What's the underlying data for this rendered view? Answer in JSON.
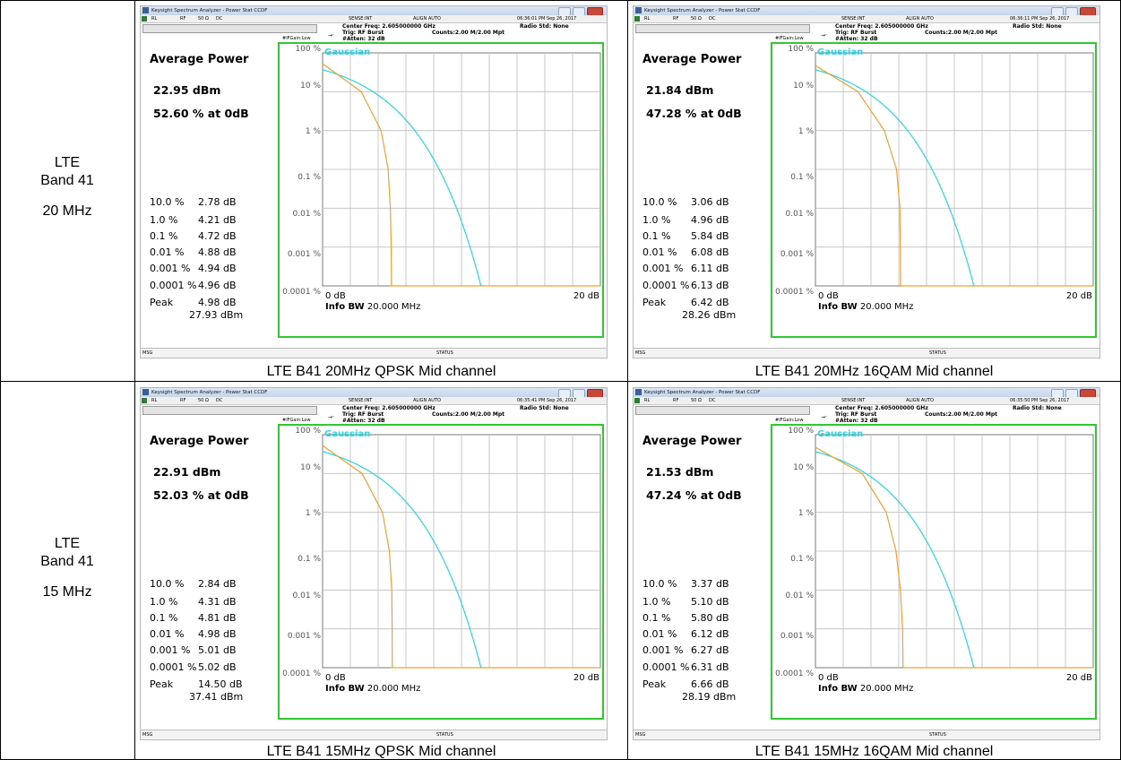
{
  "rows": [
    {
      "band_l1": "LTE",
      "band_l2": "Band 41",
      "bw": "20 MHz"
    },
    {
      "band_l1": "LTE",
      "band_l2": "Band 41",
      "bw": "15 MHz"
    }
  ],
  "common": {
    "app_title": "Keysight Spectrum Analyzer - Power Stat CCDF",
    "rl": "RL",
    "rf": "RF",
    "ohm": "50 Ω",
    "dc": "DC",
    "sense": "SENSE:INT",
    "align": "ALIGN AUTO",
    "center_freq": "Center Freq: 2.605000000 GHz",
    "trig": "Trig: RF Burst",
    "atten": "#Atten: 32 dB",
    "ifgain": "#IFGain:Low",
    "counts": "Counts:2.00 M/2.00 Mpt",
    "radio_std": "Radio Std: None",
    "average_power_label": "Average Power",
    "gaussian_label": "Gaussian",
    "y_ticks": [
      "100 %",
      "10 %",
      "1 %",
      "0.1 %",
      "0.01 %",
      "0.001 %",
      "0.0001 %"
    ],
    "x_left": "0 dB",
    "x_right": "20 dB",
    "info_bw_label": "Info BW",
    "info_bw_value": "20.000 MHz",
    "msg": "MSG",
    "status": "STATUS",
    "stat_labels": [
      "10.0 %",
      "1.0 %",
      "0.1 %",
      "0.01 %",
      "0.001 %",
      "0.0001 %",
      "Peak"
    ],
    "colors": {
      "gaussian": "#28d6e6",
      "measured": "#f0a030",
      "frame": "#32c832"
    }
  },
  "screenshots": [
    {
      "timestamp": "06:36:01 PM Sep 26, 2017",
      "avg_power": "22.95 dBm",
      "pct_at_0db": "52.60 % at 0dB",
      "stats": [
        "2.78 dB",
        "4.21 dB",
        "4.72 dB",
        "4.88 dB",
        "4.94 dB",
        "4.96 dB",
        "4.98 dB"
      ],
      "peak_dbm": "27.93 dBm",
      "caption": "LTE B41 20MHz QPSK Mid channel"
    },
    {
      "timestamp": "06:36:11 PM Sep 26, 2017",
      "avg_power": "21.84 dBm",
      "pct_at_0db": "47.28 % at 0dB",
      "stats": [
        "3.06 dB",
        "4.96 dB",
        "5.84 dB",
        "6.08 dB",
        "6.11 dB",
        "6.13 dB",
        "6.42 dB"
      ],
      "peak_dbm": "28.26 dBm",
      "caption": "LTE B41 20MHz 16QAM Mid channel"
    },
    {
      "timestamp": "06:35:41 PM Sep 26, 2017",
      "avg_power": "22.91 dBm",
      "pct_at_0db": "52.03 % at 0dB",
      "stats": [
        "2.84 dB",
        "4.31 dB",
        "4.81 dB",
        "4.98 dB",
        "5.01 dB",
        "5.02 dB",
        "14.50 dB"
      ],
      "peak_dbm": "37.41 dBm",
      "caption": "LTE B41 15MHz QPSK Mid channel"
    },
    {
      "timestamp": "06:35:50 PM Sep 26, 2017",
      "avg_power": "21.53 dBm",
      "pct_at_0db": "47.24 % at 0dB",
      "stats": [
        "3.37 dB",
        "5.10 dB",
        "5.80 dB",
        "6.12 dB",
        "6.27 dB",
        "6.31 dB",
        "6.66 dB"
      ],
      "peak_dbm": "28.19 dBm",
      "caption": "LTE B41 15MHz 16QAM Mid channel"
    }
  ]
}
